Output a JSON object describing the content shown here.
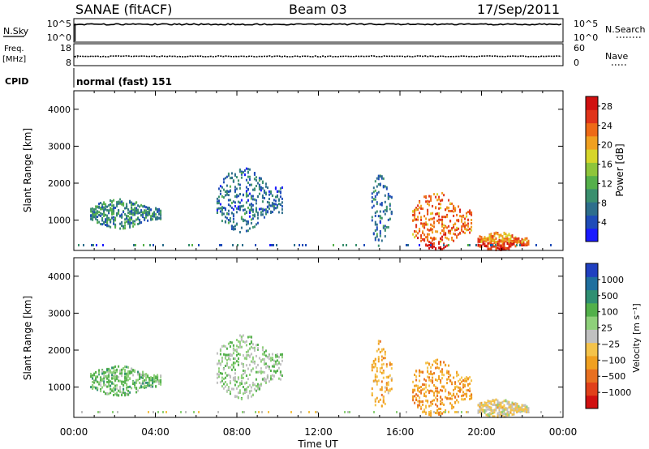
{
  "header": {
    "station": "SANAE (fitACF)",
    "beam": "Beam 03",
    "date": "17/Sep/2011"
  },
  "top_panels": {
    "nsky": {
      "left_label": "N.Sky",
      "left_ticks": [
        "10^5",
        "10^0"
      ],
      "right_label": "N.Search",
      "right_ticks": [
        "10^5",
        "10^0"
      ]
    },
    "freq": {
      "left_label_1": "Freq.",
      "left_label_2": "[MHz]",
      "left_ticks": [
        "18",
        "8"
      ],
      "right_label": "Nave",
      "right_ticks": [
        "60",
        "0"
      ]
    },
    "cpid": {
      "label": "CPID",
      "value": "normal (fast) 151"
    }
  },
  "colors": {
    "power_scale": [
      "#1a1aff",
      "#1f4cb8",
      "#2d6e8c",
      "#3a8f6e",
      "#55b04a",
      "#8ec53a",
      "#d6d62a",
      "#f0a020",
      "#ee6a16",
      "#e0341a",
      "#d01010"
    ],
    "velocity_scale": [
      "#2040c0",
      "#1f6f9e",
      "#2f8f72",
      "#52b04a",
      "#8ed07a",
      "#c0c0c0",
      "#f4c34a",
      "#f0a020",
      "#e87020",
      "#e0401a",
      "#d01010"
    ]
  },
  "chart_data": [
    {
      "type": "heatmap",
      "panel": "power",
      "title": "",
      "xlabel": "",
      "ylabel": "Slant Range [km]",
      "xlim": [
        "00:00",
        "24:00"
      ],
      "ylim": [
        180,
        4500
      ],
      "yticks": [
        "1000",
        "2000",
        "3000",
        "4000"
      ],
      "colorbar": {
        "label": "Power [dB]",
        "ticks": [
          "4",
          "8",
          "12",
          "16",
          "20",
          "24",
          "28"
        ],
        "range": [
          0,
          30
        ]
      },
      "echo_regions": [
        {
          "start_hr": 0.8,
          "end_hr": 4.3,
          "range_lo_km": 800,
          "range_hi_km": 1600,
          "power_db": 8
        },
        {
          "start_hr": 7.0,
          "end_hr": 10.2,
          "range_lo_km": 700,
          "range_hi_km": 2450,
          "power_db": 6
        },
        {
          "start_hr": 14.6,
          "end_hr": 15.6,
          "range_lo_km": 300,
          "range_hi_km": 2300,
          "power_db": 6
        },
        {
          "start_hr": 16.6,
          "end_hr": 19.5,
          "range_lo_km": 200,
          "range_hi_km": 1800,
          "power_db": 24
        },
        {
          "start_hr": 19.8,
          "end_hr": 22.3,
          "range_lo_km": 200,
          "range_hi_km": 700,
          "power_db": 22
        }
      ]
    },
    {
      "type": "heatmap",
      "panel": "velocity",
      "title": "",
      "xlabel": "Time UT",
      "ylabel": "Slant Range [km]",
      "xlim": [
        "00:00",
        "24:00"
      ],
      "ylim": [
        180,
        4500
      ],
      "xticks": [
        "00:00",
        "04:00",
        "08:00",
        "12:00",
        "16:00",
        "20:00",
        "00:00"
      ],
      "yticks": [
        "1000",
        "2000",
        "3000",
        "4000"
      ],
      "colorbar": {
        "label": "Velocity [m s⁻¹]",
        "ticks": [
          "1000",
          "500",
          "100",
          "25",
          "−25",
          "−100",
          "−500",
          "−1000"
        ]
      },
      "echo_regions": [
        {
          "start_hr": 0.8,
          "end_hr": 4.3,
          "range_lo_km": 800,
          "range_hi_km": 1600,
          "velocity_ms": 300
        },
        {
          "start_hr": 7.0,
          "end_hr": 10.2,
          "range_lo_km": 700,
          "range_hi_km": 2450,
          "velocity_ms": 150
        },
        {
          "start_hr": 14.6,
          "end_hr": 15.6,
          "range_lo_km": 300,
          "range_hi_km": 2300,
          "velocity_ms": -300
        },
        {
          "start_hr": 16.6,
          "end_hr": 19.5,
          "range_lo_km": 200,
          "range_hi_km": 1800,
          "velocity_ms": -400
        },
        {
          "start_hr": 19.8,
          "end_hr": 22.3,
          "range_lo_km": 200,
          "range_hi_km": 700,
          "velocity_ms": -80
        }
      ]
    }
  ]
}
